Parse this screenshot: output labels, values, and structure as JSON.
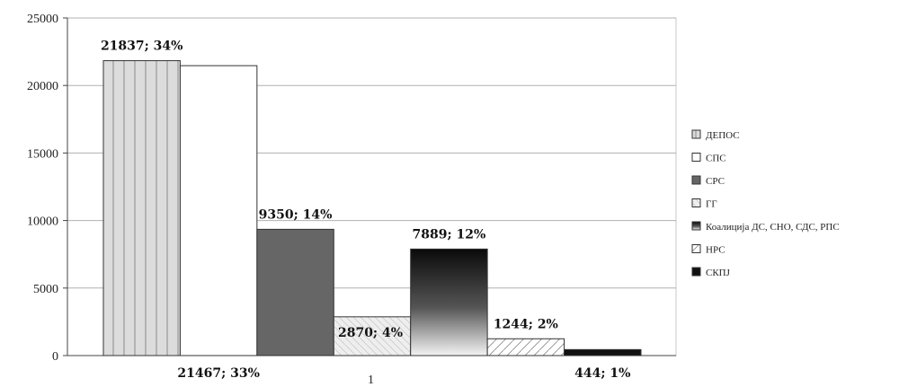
{
  "chart_data": {
    "type": "bar",
    "categories": [
      "1"
    ],
    "ylim": [
      0,
      25000
    ],
    "yticks": [
      0,
      5000,
      10000,
      15000,
      20000,
      25000
    ],
    "grid": true,
    "legend_position": "right",
    "series": [
      {
        "name": "ДЕПОС",
        "values": [
          21837
        ],
        "label": "21837; 34%",
        "fill": "vlines"
      },
      {
        "name": "СПС",
        "values": [
          21467
        ],
        "label": "21467; 33%",
        "fill": "white"
      },
      {
        "name": "СРС",
        "values": [
          9350
        ],
        "label": "9350; 14%",
        "fill": "#666666"
      },
      {
        "name": "ГГ",
        "values": [
          2870
        ],
        "label": "2870; 4%",
        "fill": "lightgrid"
      },
      {
        "name": "Коалиција ДС, СНО, СДС, РПС",
        "values": [
          7889
        ],
        "label": "7889; 12%",
        "fill": "gradient"
      },
      {
        "name": "НРС",
        "values": [
          1244
        ],
        "label": "1244; 2%",
        "fill": "hatch"
      },
      {
        "name": "СКПЈ",
        "values": [
          444
        ],
        "label": "444; 1%",
        "fill": "#111111"
      }
    ]
  }
}
